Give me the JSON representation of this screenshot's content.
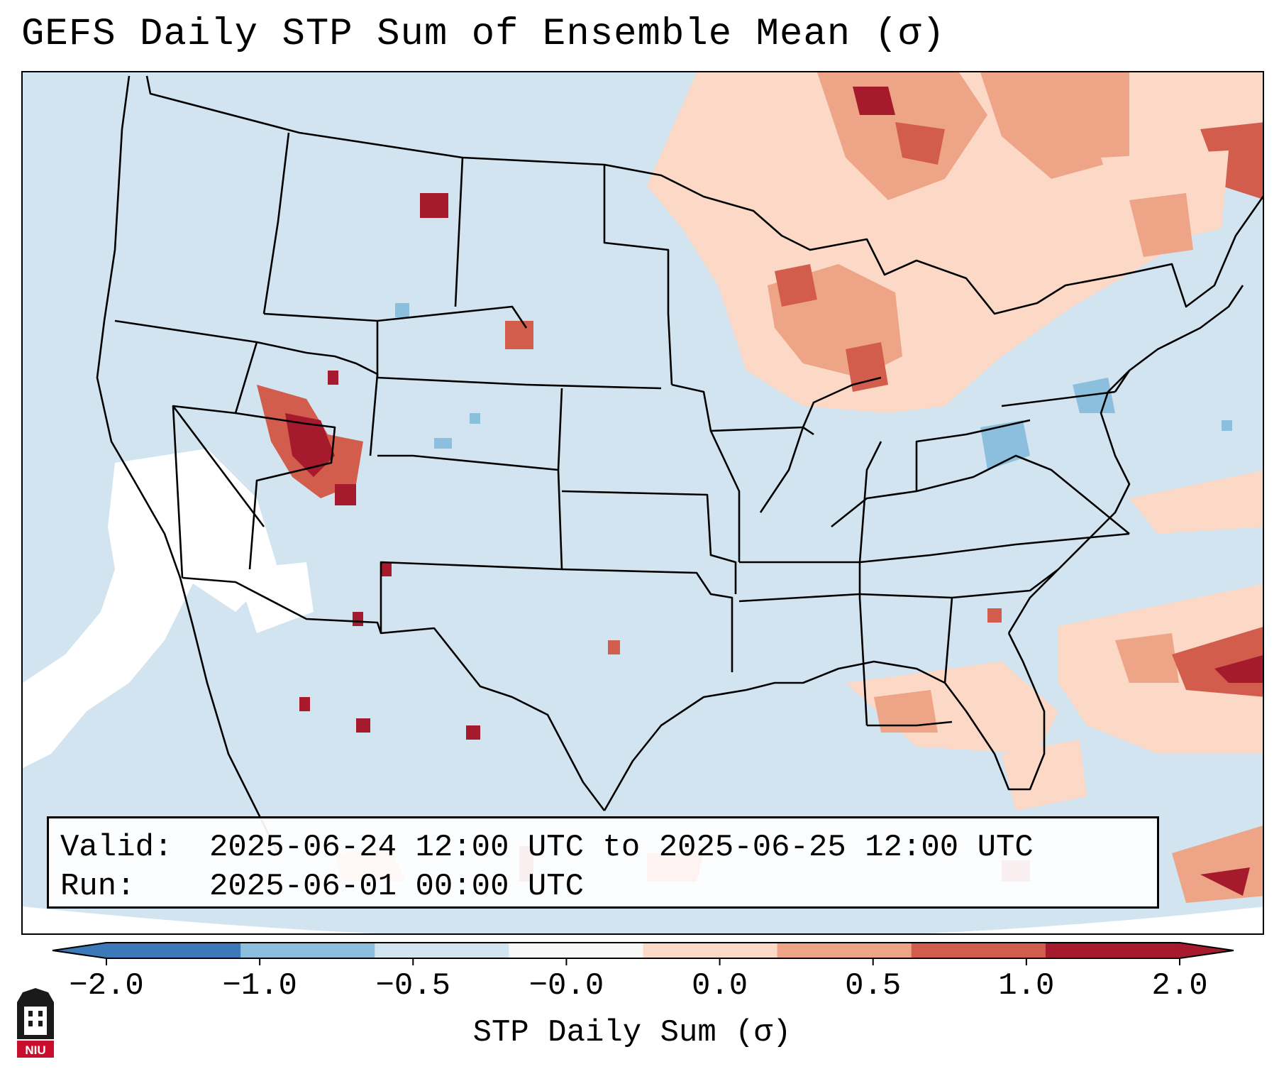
{
  "title": "GEFS Daily STP Sum of Ensemble Mean (σ)",
  "info_box": {
    "valid_label": "Valid:",
    "valid_value": "2025-06-24 12:00 UTC to 2025-06-25 12:00 UTC",
    "run_label": "Run:",
    "run_value": "2025-06-01 00:00 UTC"
  },
  "colorbar": {
    "label": "STP Daily Sum (σ)",
    "ticks": [
      "−2.0",
      "−1.0",
      "−0.5",
      "−0.0",
      "0.0",
      "0.5",
      "1.0",
      "2.0"
    ],
    "colors": [
      "#3b79b8",
      "#8cbfde",
      "#d1e4f0",
      "#f7f7f7",
      "#fcd8c6",
      "#eda487",
      "#d35d4c",
      "#a51a2c"
    ],
    "extend": "both"
  },
  "colors": {
    "ocean_base": "#d1e4f0",
    "land_base": "#d1e4f0",
    "positive_light": "#fcd8c6",
    "positive_mid": "#eda487",
    "positive_strong": "#d35d4c",
    "positive_max": "#a51a2c",
    "negative_light": "#8cbfde",
    "border_line": "#000000"
  },
  "map": {
    "domain": "Contiguous United States, southern Canada, northern Mexico, western Atlantic",
    "field": "STP daily sum standardized anomaly (σ)",
    "hotspots": [
      {
        "region": "Western Great Lakes / Wisconsin / Michigan",
        "level": "1.0 to 2.0"
      },
      {
        "region": "Northern Ontario / Quebec",
        "level": "1.0 to 2.0"
      },
      {
        "region": "Southern Nevada / Utah",
        "level": "≥ 2.0"
      },
      {
        "region": "Western Atlantic east of Carolinas",
        "level": "1.0 to 2.0"
      },
      {
        "region": "Mid-Atlantic / West Virginia",
        "level": "−1.0 to −0.5"
      }
    ]
  },
  "logo": {
    "text": "NIU"
  }
}
